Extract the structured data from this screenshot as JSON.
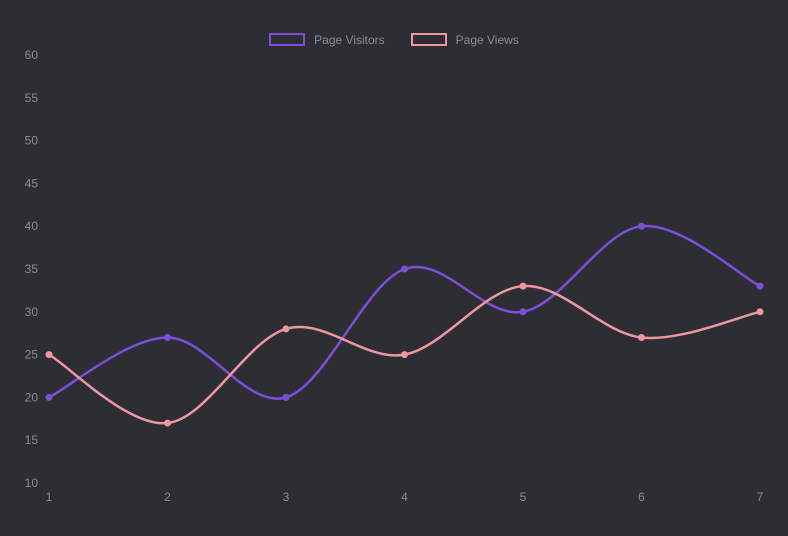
{
  "chart_data": {
    "type": "line",
    "title": "",
    "xlabel": "",
    "ylabel": "",
    "x": [
      1,
      2,
      3,
      4,
      5,
      6,
      7
    ],
    "x_tick_labels": [
      "1",
      "2",
      "3",
      "4",
      "5",
      "6",
      "7"
    ],
    "y_tick_labels": [
      "10",
      "15",
      "20",
      "25",
      "30",
      "35",
      "40",
      "45",
      "50",
      "55",
      "60"
    ],
    "ylim": [
      10,
      60
    ],
    "ytick_step": 5,
    "grid": false,
    "legend_position": "top-center",
    "line_style": "smooth",
    "series": [
      {
        "name": "Page Visitors",
        "values": [
          20,
          27,
          20,
          35,
          30,
          40,
          33
        ],
        "color": "#7d4fd9"
      },
      {
        "name": "Page Views",
        "values": [
          25,
          17,
          28,
          25,
          33,
          27,
          30
        ],
        "color": "#ee97a0"
      }
    ],
    "colors": {
      "background": "#2c2e34",
      "text": "#8a8d93"
    }
  }
}
